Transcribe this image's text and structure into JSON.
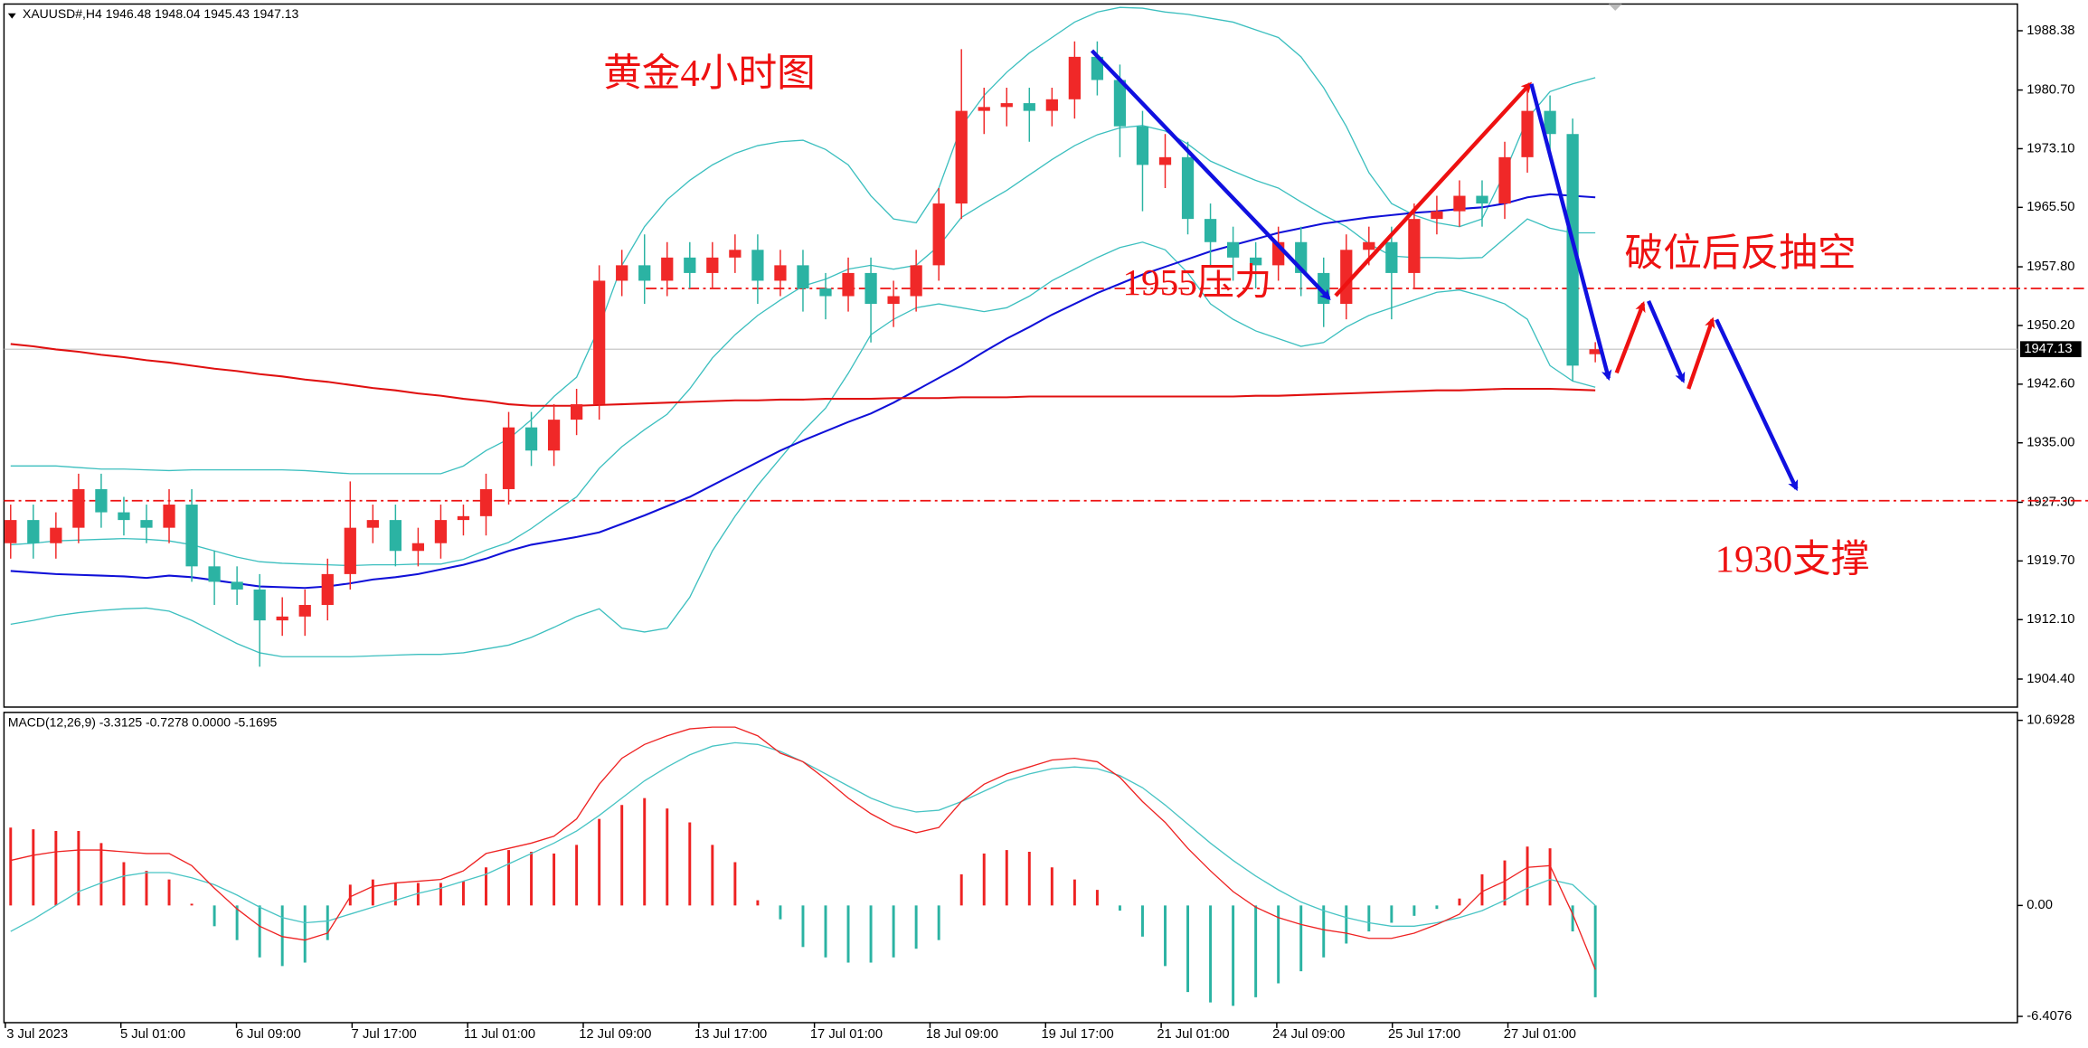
{
  "chart_data": {
    "type": "candlestick",
    "header": "XAUUSD#,H4  1946.48 1948.04 1945.43 1947.13",
    "title": "黄金4小时图",
    "up_color": "#f02828",
    "down_color": "#2bb3a3",
    "candles": {
      "open": [
        1922,
        1925,
        1922,
        1924,
        1929,
        1926,
        1925,
        1924,
        1927,
        1919,
        1917,
        1916,
        1912,
        1912.5,
        1914,
        1918,
        1924,
        1925,
        1921,
        1922,
        1925,
        1925.5,
        1929,
        1937,
        1934,
        1938,
        1940,
        1956,
        1958,
        1956,
        1959,
        1957,
        1959,
        1960,
        1956,
        1958,
        1955,
        1954,
        1957,
        1953,
        1954,
        1958,
        1966,
        1978,
        1978.5,
        1979,
        1978,
        1979.5,
        1985,
        1982,
        1976,
        1971,
        1972,
        1964,
        1961,
        1959,
        1958,
        1961,
        1957,
        1953,
        1960,
        1961,
        1957,
        1964,
        1965,
        1967,
        1966,
        1972,
        1978,
        1975,
        1946.48
      ],
      "high": [
        1927,
        1927,
        1926,
        1931,
        1931,
        1928,
        1927,
        1929,
        1929,
        1921,
        1919,
        1918,
        1915,
        1916,
        1920,
        1930,
        1927,
        1927,
        1924,
        1927,
        1927,
        1931,
        1939,
        1939,
        1940,
        1942,
        1958,
        1960,
        1962,
        1961,
        1961,
        1961,
        1962,
        1962,
        1960,
        1960,
        1957,
        1959,
        1959,
        1956,
        1960,
        1968,
        1986,
        1981,
        1981,
        1981,
        1981,
        1987,
        1987,
        1984,
        1978,
        1975,
        1974,
        1966,
        1963,
        1961,
        1963,
        1963,
        1959,
        1962,
        1963,
        1963,
        1966,
        1967,
        1969,
        1969,
        1974,
        1981,
        1980,
        1977,
        1948.04
      ],
      "low": [
        1920,
        1920,
        1920,
        1922,
        1924,
        1923,
        1922,
        1922,
        1917,
        1914,
        1914,
        1906,
        1910,
        1910,
        1912,
        1916,
        1922,
        1919,
        1919,
        1920,
        1923,
        1923,
        1927,
        1932,
        1932,
        1936,
        1938,
        1954,
        1953,
        1954,
        1955,
        1955,
        1957,
        1953,
        1954,
        1952,
        1951,
        1952,
        1948,
        1950,
        1952,
        1956,
        1964,
        1975,
        1976,
        1974,
        1976,
        1977,
        1980,
        1972,
        1965,
        1968,
        1962,
        1958,
        1956,
        1955,
        1956,
        1954,
        1950,
        1951,
        1958,
        1951,
        1955,
        1962,
        1963,
        1963,
        1964,
        1970,
        1973,
        1943,
        1945.43
      ],
      "close": [
        1925,
        1922,
        1924,
        1929,
        1926,
        1925,
        1924,
        1927,
        1919,
        1917,
        1916,
        1912,
        1912.5,
        1914,
        1918,
        1924,
        1925,
        1921,
        1922,
        1925,
        1925.5,
        1929,
        1937,
        1934,
        1938,
        1940,
        1956,
        1958,
        1956,
        1959,
        1957,
        1959,
        1960,
        1956,
        1958,
        1955,
        1954,
        1957,
        1953,
        1954,
        1958,
        1966,
        1978,
        1978.5,
        1979,
        1978,
        1979.5,
        1985,
        1982,
        1976,
        1971,
        1972,
        1964,
        1961,
        1959,
        1958,
        1961,
        1957,
        1953,
        1960,
        1961,
        1957,
        1964,
        1965,
        1967,
        1966,
        1972,
        1978,
        1975,
        1945,
        1947.13
      ]
    },
    "lines": [
      {
        "color": "#3cbfbf",
        "values": [
          1932,
          1932,
          1932,
          1931.8,
          1931.6,
          1931.6,
          1931.5,
          1931.4,
          1931.5,
          1931.5,
          1931.5,
          1931.5,
          1931.5,
          1931.4,
          1931.2,
          1931,
          1931,
          1931,
          1931,
          1931,
          1932,
          1934,
          1935.5,
          1938,
          1941,
          1943.5,
          1950,
          1958,
          1963,
          1966.5,
          1969,
          1971,
          1972.5,
          1973.5,
          1974,
          1974.2,
          1973,
          1971,
          1967,
          1964,
          1963.5,
          1968,
          1976,
          1980,
          1983,
          1985.5,
          1987.5,
          1989.5,
          1990.8,
          1991.4,
          1991.3,
          1990.8,
          1990.5,
          1990,
          1989.5,
          1988.5,
          1987.5,
          1985,
          1981,
          1976,
          1970,
          1966,
          1964.5,
          1963.5,
          1963,
          1964,
          1970,
          1977,
          1980.5,
          1981.5,
          1982.3
        ]
      },
      {
        "color": "#3cbfbf",
        "values": [
          1921.8,
          1922,
          1922.3,
          1922.4,
          1922.5,
          1922.6,
          1922.5,
          1922.3,
          1921.8,
          1921,
          1920.2,
          1919.6,
          1919.4,
          1919.3,
          1919.2,
          1919.1,
          1919.2,
          1919.2,
          1919.3,
          1919.3,
          1919.9,
          1921.1,
          1922.1,
          1923.9,
          1926,
          1928,
          1931.7,
          1934.5,
          1936.7,
          1938.7,
          1942,
          1946,
          1949,
          1951.5,
          1953.5,
          1955.3,
          1956.2,
          1957.5,
          1958,
          1957.5,
          1958,
          1960.5,
          1964.2,
          1966,
          1967.7,
          1969.7,
          1971.7,
          1973.5,
          1974.9,
          1975.8,
          1976.1,
          1975.4,
          1973.7,
          1971.5,
          1970.2,
          1969,
          1968,
          1966.2,
          1964.5,
          1963,
          1960.8,
          1959.2,
          1959,
          1959,
          1958.9,
          1959,
          1961.5,
          1964,
          1962.8,
          1962.2,
          1962.2
        ]
      },
      {
        "color": "#3cbfbf",
        "values": [
          1911.5,
          1912,
          1912.6,
          1913,
          1913.3,
          1913.5,
          1913.6,
          1913.2,
          1912,
          1910.5,
          1909,
          1907.8,
          1907.3,
          1907.3,
          1907.3,
          1907.3,
          1907.4,
          1907.5,
          1907.6,
          1907.6,
          1907.8,
          1908.3,
          1908.8,
          1909.8,
          1911.1,
          1912.5,
          1913.5,
          1911,
          1910.5,
          1911,
          1915,
          1921,
          1925.5,
          1929.5,
          1933,
          1936.5,
          1939.5,
          1944,
          1949,
          1951,
          1952.5,
          1953,
          1952.5,
          1952,
          1952.5,
          1954,
          1956,
          1957.5,
          1959,
          1960.3,
          1961,
          1960,
          1957,
          1953,
          1951,
          1949.5,
          1948.5,
          1947.5,
          1948,
          1950,
          1951.5,
          1952.5,
          1953.5,
          1954.5,
          1954.8,
          1954,
          1953,
          1951,
          1945,
          1943,
          1942.2
        ]
      },
      {
        "color": "#1010d8",
        "values": [
          1918.4,
          1918.2,
          1918,
          1917.9,
          1917.8,
          1917.7,
          1917.5,
          1917.8,
          1917.6,
          1917.2,
          1916.8,
          1916.4,
          1916.3,
          1916.2,
          1916.4,
          1916.8,
          1917.3,
          1917.6,
          1918,
          1918.6,
          1919.2,
          1920,
          1921,
          1921.8,
          1922.3,
          1922.8,
          1923.4,
          1924.5,
          1925.6,
          1926.8,
          1928,
          1929.5,
          1931,
          1932.5,
          1934,
          1935.3,
          1936.5,
          1937.7,
          1938.8,
          1940.2,
          1941.8,
          1943.4,
          1945,
          1946.8,
          1948.5,
          1950,
          1951.6,
          1953,
          1954.4,
          1955.6,
          1956.8,
          1957.8,
          1958.8,
          1959.8,
          1960.6,
          1961.4,
          1962.2,
          1962.8,
          1963.4,
          1963.8,
          1964.2,
          1964.5,
          1964.8,
          1965,
          1965.3,
          1965.5,
          1966,
          1966.8,
          1967.2,
          1967,
          1966.8
        ]
      },
      {
        "color": "#e01010",
        "values": [
          1947.8,
          1947.5,
          1947.1,
          1946.8,
          1946.4,
          1946.1,
          1945.7,
          1945.4,
          1945,
          1944.6,
          1944.3,
          1943.9,
          1943.6,
          1943.2,
          1942.9,
          1942.5,
          1942.1,
          1941.8,
          1941.4,
          1941.1,
          1940.7,
          1940.4,
          1940,
          1939.8,
          1939.8,
          1939.8,
          1939.9,
          1940,
          1940.1,
          1940.2,
          1940.3,
          1940.4,
          1940.5,
          1940.5,
          1940.6,
          1940.6,
          1940.7,
          1940.7,
          1940.7,
          1940.8,
          1940.8,
          1940.8,
          1940.9,
          1940.9,
          1940.9,
          1941,
          1941,
          1941,
          1941,
          1941,
          1941,
          1941,
          1941,
          1941,
          1941,
          1941.1,
          1941.1,
          1941.2,
          1941.3,
          1941.4,
          1941.5,
          1941.6,
          1941.7,
          1941.8,
          1941.8,
          1941.9,
          1942,
          1942,
          1942,
          1941.9,
          1941.8
        ]
      }
    ],
    "levels": [
      1955,
      1927.5
    ],
    "level_color": "#ee1111",
    "last_price": 1947.13,
    "ylim": [
      1900.77,
      1991.84
    ],
    "yticks": [
      1988.38,
      {
        "value": 1980.7,
        "label": "1980.70"
      },
      {
        "value": 1973.1,
        "label": "1973.10"
      },
      {
        "value": 1965.5,
        "label": "1965.50"
      },
      {
        "value": 1957.8,
        "label": "1957.80"
      },
      {
        "value": 1950.2,
        "label": "1950.20"
      },
      {
        "value": 1942.6,
        "label": "1942.60"
      },
      {
        "value": 1935,
        "label": "1935.00"
      },
      {
        "value": 1927.3,
        "label": "1927.30"
      },
      {
        "value": 1919.7,
        "label": "1919.70"
      },
      {
        "value": 1912.1,
        "label": "1912.10"
      },
      {
        "value": 1904.4,
        "label": "1904.40"
      }
    ],
    "x_labels": [
      "3 Jul 2023",
      "5 Jul 01:00",
      "6 Jul 09:00",
      "7 Jul 17:00",
      "11 Jul 01:00",
      "12 Jul 09:00",
      "13 Jul 17:00",
      "17 Jul 01:00",
      "18 Jul 09:00",
      "19 Jul 17:00",
      "21 Jul 01:00",
      "24 Jul 09:00",
      "25 Jul 17:00",
      "27 Jul 01:00"
    ],
    "annotations": [
      "1955压力",
      "破位后反抽空",
      "1930支撑"
    ],
    "macd": {
      "label": "MACD(12,26,9) -3.3125 -0.7278 0.0000 -5.1695",
      "type": "bar",
      "histogram": [
        4.5,
        4.4,
        4.3,
        4.3,
        3.6,
        2.5,
        2,
        1.5,
        0.1,
        -1.2,
        -2,
        -3,
        -3.5,
        -3.3,
        -2,
        1.2,
        1.5,
        1.3,
        1.3,
        1.3,
        1.4,
        2.2,
        3.2,
        3.1,
        3,
        3.5,
        5,
        5.8,
        6.2,
        5.6,
        4.8,
        3.5,
        2.5,
        0.3,
        -0.8,
        -2.4,
        -3,
        -3.3,
        -3.3,
        -3,
        -2.5,
        -2,
        1.8,
        3,
        3.2,
        3.1,
        2.2,
        1.5,
        0.9,
        -0.3,
        -1.8,
        -3.5,
        -5,
        -5.6,
        -5.8,
        -5.3,
        -4.5,
        -3.8,
        -3,
        -2.2,
        -1.5,
        -1,
        -0.6,
        -0.2,
        0.4,
        1.8,
        2.6,
        3.4,
        3.3,
        -1.5,
        -5.3
      ],
      "up_color": "#ee2222",
      "down_color": "#2bb3a3",
      "lines": [
        {
          "color": "#48c4c4",
          "values": [
            -1.5,
            -0.8,
            0,
            0.8,
            1.3,
            1.7,
            1.9,
            1.9,
            1.6,
            1.2,
            0.6,
            -0.1,
            -0.7,
            -1,
            -0.9,
            -0.5,
            -0.1,
            0.3,
            0.7,
            1,
            1.4,
            1.8,
            2.4,
            3,
            3.6,
            4.3,
            5.2,
            6.2,
            7.2,
            8,
            8.7,
            9.2,
            9.4,
            9.3,
            8.9,
            8.3,
            7.6,
            6.9,
            6.2,
            5.7,
            5.4,
            5.5,
            6,
            6.6,
            7.2,
            7.6,
            7.9,
            8,
            7.9,
            7.5,
            6.8,
            5.8,
            4.7,
            3.6,
            2.6,
            1.7,
            0.9,
            0.2,
            -0.3,
            -0.7,
            -1,
            -1.2,
            -1.2,
            -1,
            -0.7,
            -0.3,
            0.3,
            1,
            1.5,
            1.2,
            0
          ]
        },
        {
          "color": "#ee2222",
          "values": [
            2.6,
            2.9,
            3.1,
            3.2,
            3.2,
            3.1,
            3,
            3,
            2.3,
            1,
            -0.2,
            -1.2,
            -1.8,
            -2,
            -1.6,
            0.5,
            1.1,
            1.3,
            1.4,
            1.5,
            2,
            3,
            3.3,
            3.6,
            4,
            5,
            7,
            8.5,
            9.3,
            9.8,
            10.2,
            10.3,
            10.3,
            9.8,
            8.8,
            8.3,
            7.3,
            6.2,
            5.3,
            4.6,
            4.2,
            4.5,
            6,
            7,
            7.6,
            8,
            8.4,
            8.5,
            8.3,
            7.4,
            6,
            4.8,
            3.3,
            2,
            0.8,
            -0.1,
            -0.7,
            -1.1,
            -1.4,
            -1.6,
            -1.9,
            -1.9,
            -1.6,
            -1.1,
            -0.5,
            0.8,
            1.4,
            2.2,
            2.3,
            -0.5,
            -3.7
          ]
        }
      ],
      "ylim": [
        -6.77,
        11.15
      ],
      "yticks": [
        10.6928,
        {
          "value": 0,
          "label": "0.00"
        },
        -6.4076
      ]
    }
  }
}
